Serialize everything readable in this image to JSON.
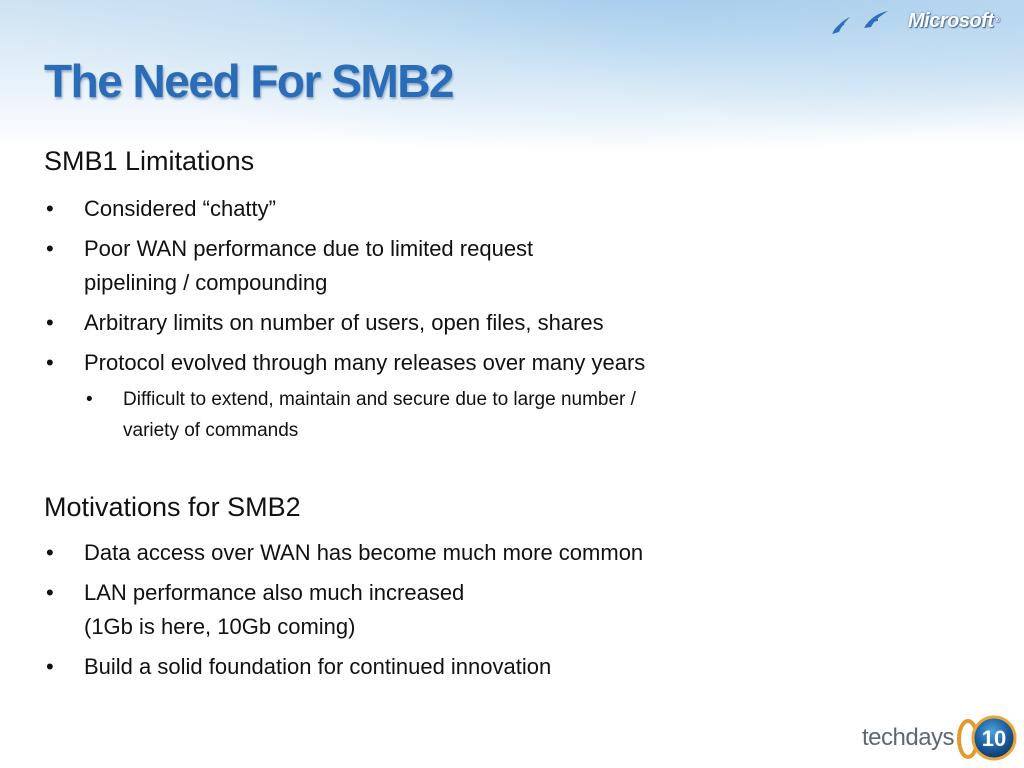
{
  "header": {
    "brand_logo_text": "Microsoft",
    "brand_logo_mark": "®"
  },
  "title": "The Need For SMB2",
  "sections": [
    {
      "heading": "SMB1 Limitations",
      "bullets": [
        {
          "lines": [
            "Considered “chatty”"
          ]
        },
        {
          "lines": [
            "Poor WAN performance due to limited request",
            "pipelining / compounding"
          ]
        },
        {
          "lines": [
            "Arbitrary limits on number of users, open files, shares"
          ]
        },
        {
          "lines": [
            "Protocol evolved through many releases over many years"
          ]
        }
      ],
      "sub_bullets": [
        {
          "lines": [
            "Difficult to extend, maintain and secure due to large number /",
            "variety of commands"
          ]
        }
      ]
    },
    {
      "heading": "Motivations for SMB2",
      "bullets": [
        {
          "lines": [
            "Data access over WAN has become much more common"
          ]
        },
        {
          "lines": [
            "LAN performance also much increased",
            "(1Gb is here, 10Gb coming)"
          ]
        },
        {
          "lines": [
            "Build a solid foundation for continued innovation"
          ]
        }
      ]
    }
  ],
  "bullet_symbol": "•",
  "footer": {
    "event_logo_text": "techdays",
    "event_logo_number": "10"
  },
  "colors": {
    "title": "#2b6cb8",
    "text": "#111111",
    "header_gradient": "#cfe3f3"
  },
  "icons": [
    "birds-icon",
    "microsoft-logo",
    "techdays-logo"
  ]
}
